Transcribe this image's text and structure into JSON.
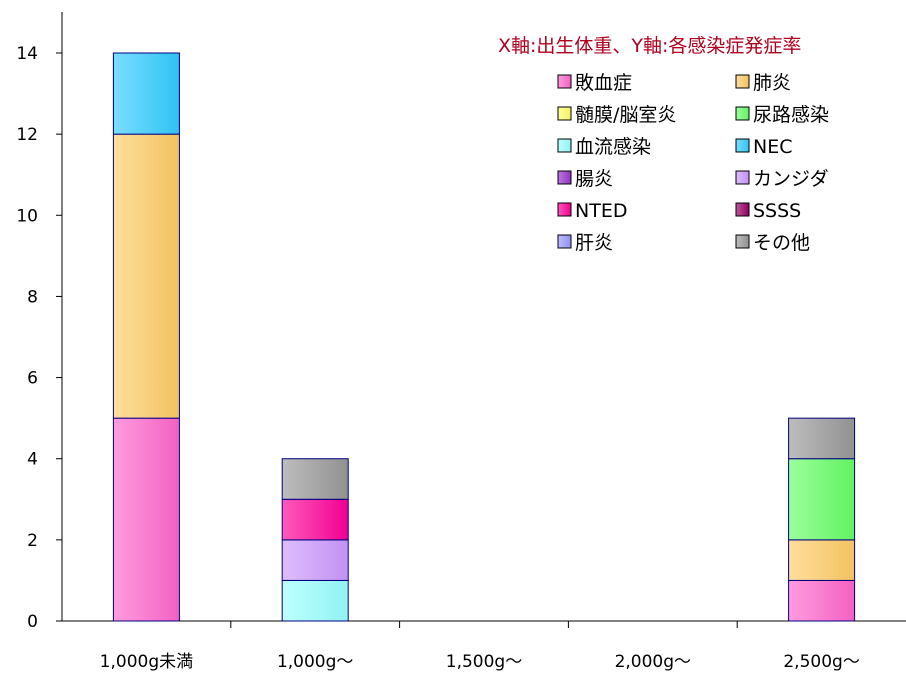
{
  "chart_data": {
    "type": "bar",
    "stacked": true,
    "title": "X軸:出生体重、Y軸:各感染症発症率",
    "xlabel": "",
    "ylabel": "",
    "categories": [
      "1,000g未満",
      "1,000g〜",
      "1,500g〜",
      "2,000g〜",
      "2,500g〜"
    ],
    "ylim": [
      0,
      14
    ],
    "yticks": [
      0,
      2,
      4,
      6,
      8,
      10,
      12,
      14
    ],
    "grid": false,
    "legend_position": "top-right",
    "series": [
      {
        "name": "敗血症",
        "color": "#ff66cc",
        "values": [
          5,
          0,
          0,
          0,
          1
        ]
      },
      {
        "name": "肺炎",
        "color": "#ffcc66",
        "values": [
          7,
          0,
          0,
          0,
          1
        ]
      },
      {
        "name": "髄膜/脳室炎",
        "color": "#ffff66",
        "values": [
          0,
          0,
          0,
          0,
          0
        ]
      },
      {
        "name": "尿路感染",
        "color": "#66ff66",
        "values": [
          0,
          0,
          0,
          0,
          2
        ]
      },
      {
        "name": "血流感染",
        "color": "#99ffff",
        "values": [
          0,
          1,
          0,
          0,
          0
        ]
      },
      {
        "name": "NEC",
        "color": "#33ccff",
        "values": [
          2,
          0,
          0,
          0,
          0
        ]
      },
      {
        "name": "腸炎",
        "color": "#9933cc",
        "values": [
          0,
          0,
          0,
          0,
          0
        ]
      },
      {
        "name": "カンジダ",
        "color": "#cc99ff",
        "values": [
          0,
          1,
          0,
          0,
          0
        ]
      },
      {
        "name": "NTED",
        "color": "#ff0099",
        "values": [
          0,
          1,
          0,
          0,
          0
        ]
      },
      {
        "name": "SSSS",
        "color": "#990066",
        "values": [
          0,
          0,
          0,
          0,
          0
        ]
      },
      {
        "name": "肝炎",
        "color": "#9999ff",
        "values": [
          0,
          0,
          0,
          0,
          0
        ]
      },
      {
        "name": "その他",
        "color": "#999999",
        "values": [
          0,
          1,
          0,
          0,
          1
        ]
      }
    ]
  }
}
